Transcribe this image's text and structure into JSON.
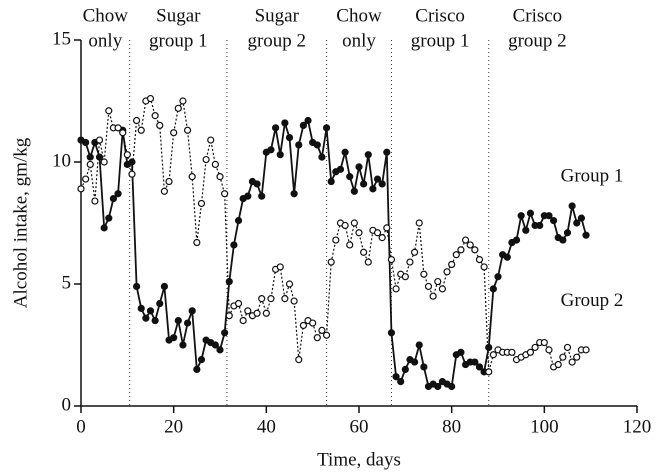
{
  "chart_data": {
    "type": "line",
    "xlabel": "Time, days",
    "ylabel": "Alcohol intake, gm/kg",
    "xlim": [
      0,
      120
    ],
    "xticks": [
      0,
      20,
      40,
      60,
      80,
      100,
      120
    ],
    "ylim": [
      0,
      15
    ],
    "yticks": [
      0,
      5,
      10,
      15
    ],
    "phases": [
      [
        "Chow",
        "only"
      ],
      [
        "Sugar",
        "group 1"
      ],
      [
        "Sugar",
        "group 2"
      ],
      [
        "Chow",
        "only"
      ],
      [
        "Crisco",
        "group 1"
      ],
      [
        "Crisco",
        "group 2"
      ]
    ],
    "phase_boundaries": [
      10.5,
      31.5,
      53,
      67,
      88
    ],
    "x": [
      0,
      1,
      2,
      3,
      4,
      5,
      6,
      7,
      8,
      9,
      10,
      11,
      12,
      13,
      14,
      15,
      16,
      17,
      18,
      19,
      20,
      21,
      22,
      23,
      24,
      25,
      26,
      27,
      28,
      29,
      30,
      31,
      32,
      33,
      34,
      35,
      36,
      37,
      38,
      39,
      40,
      41,
      42,
      43,
      44,
      45,
      46,
      47,
      48,
      49,
      50,
      51,
      52,
      53,
      54,
      55,
      56,
      57,
      58,
      59,
      60,
      61,
      62,
      63,
      64,
      65,
      66,
      67,
      68,
      69,
      70,
      71,
      72,
      73,
      74,
      75,
      76,
      77,
      78,
      79,
      80,
      81,
      82,
      83,
      84,
      85,
      86,
      87,
      88,
      89,
      90,
      91,
      92,
      93,
      94,
      95,
      96,
      97,
      98,
      99,
      100,
      101,
      102,
      103,
      104,
      105,
      106,
      107,
      108,
      109
    ],
    "series": [
      {
        "name": "Group 1",
        "color": "#111111",
        "marker": "filled",
        "dash": false,
        "values": [
          10.9,
          10.8,
          10.2,
          10.8,
          10.2,
          7.3,
          7.7,
          8.5,
          8.7,
          11.3,
          9.9,
          10.0,
          4.9,
          4.0,
          3.6,
          3.9,
          3.5,
          4.2,
          4.9,
          2.7,
          2.8,
          3.5,
          2.5,
          3.4,
          3.9,
          1.5,
          1.9,
          2.7,
          2.6,
          2.5,
          2.3,
          3.0,
          5.1,
          6.6,
          7.6,
          8.5,
          8.6,
          9.2,
          9.1,
          8.6,
          10.4,
          10.5,
          11.4,
          10.3,
          11.6,
          11.0,
          8.7,
          10.7,
          11.5,
          11.7,
          10.8,
          10.7,
          10.2,
          11.4,
          9.2,
          9.6,
          9.7,
          10.4,
          9.4,
          8.8,
          9.8,
          9.1,
          10.3,
          8.9,
          9.3,
          9.1,
          10.4,
          3.0,
          1.2,
          1.0,
          1.5,
          1.9,
          1.8,
          2.5,
          1.6,
          0.8,
          0.9,
          0.8,
          1.0,
          0.9,
          0.8,
          2.1,
          2.2,
          1.7,
          1.8,
          1.8,
          1.6,
          1.4,
          2.4,
          4.8,
          5.3,
          6.2,
          6.1,
          6.7,
          6.8,
          7.8,
          7.2,
          7.9,
          7.4,
          7.4,
          7.8,
          7.8,
          7.6,
          6.9,
          6.8,
          7.1,
          8.2,
          7.5,
          7.7,
          7.0
        ]
      },
      {
        "name": "Group 2",
        "color": "#111111",
        "marker": "open",
        "dash": true,
        "values": [
          8.9,
          9.3,
          9.9,
          8.4,
          10.9,
          10.0,
          12.1,
          11.4,
          11.4,
          11.2,
          10.3,
          9.5,
          11.7,
          11.3,
          12.5,
          12.6,
          11.9,
          11.5,
          8.8,
          9.2,
          11.2,
          12.2,
          12.5,
          11.3,
          9.4,
          6.7,
          8.3,
          10.1,
          10.9,
          9.9,
          9.4,
          8.7,
          3.7,
          4.1,
          4.2,
          3.5,
          3.9,
          3.7,
          3.8,
          4.4,
          3.8,
          4.4,
          5.6,
          5.7,
          4.4,
          5.0,
          4.3,
          1.9,
          3.3,
          3.5,
          3.4,
          2.8,
          3.1,
          2.9,
          5.9,
          6.8,
          7.5,
          7.4,
          6.6,
          7.5,
          7.1,
          6.3,
          5.9,
          7.2,
          7.1,
          6.9,
          7.3,
          6.0,
          4.8,
          5.4,
          5.3,
          5.9,
          6.3,
          7.5,
          5.4,
          4.9,
          4.5,
          5.1,
          4.8,
          5.5,
          5.8,
          6.2,
          6.4,
          6.8,
          6.6,
          6.4,
          6.0,
          5.7,
          1.4,
          2.1,
          2.3,
          2.2,
          2.2,
          2.2,
          1.9,
          2.0,
          2.1,
          2.2,
          2.4,
          2.6,
          2.6,
          2.3,
          1.6,
          1.7,
          2.0,
          2.4,
          1.8,
          2.0,
          2.3,
          2.3
        ]
      }
    ]
  }
}
